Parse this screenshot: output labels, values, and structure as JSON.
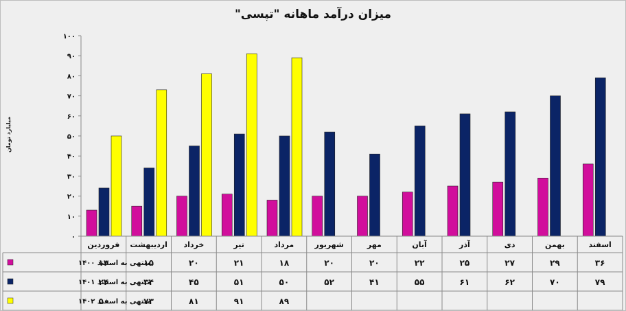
{
  "chart_data": {
    "type": "bar",
    "title": "میزان درآمد ماهانه \"تپسی\"",
    "ylabel": "میلیارد تومان",
    "ylim": [
      0,
      100
    ],
    "yticks": [
      "۰",
      "۱۰",
      "۲۰",
      "۳۰",
      "۴۰",
      "۵۰",
      "۶۰",
      "۷۰",
      "۸۰",
      "۹۰",
      "۱۰۰"
    ],
    "grid": false,
    "legend": "table-left",
    "categories": [
      "فروردین",
      "اردیبهشت",
      "خرداد",
      "تیر",
      "مرداد",
      "شهریور",
      "مهر",
      "آبان",
      "آذر",
      "دی",
      "بهمن",
      "اسفند"
    ],
    "series": [
      {
        "name": "منتهی به اسفند ۱۴۰۰",
        "color": "#d10e9c",
        "values": [
          13,
          15,
          20,
          21,
          18,
          20,
          20,
          22,
          25,
          27,
          29,
          36
        ],
        "labels": [
          "۱۳",
          "۱۵",
          "۲۰",
          "۲۱",
          "۱۸",
          "۲۰",
          "۲۰",
          "۲۲",
          "۲۵",
          "۲۷",
          "۲۹",
          "۳۶"
        ]
      },
      {
        "name": "منتهی به اسفند ۱۴۰۱",
        "color": "#0b2466",
        "values": [
          24,
          34,
          45,
          51,
          50,
          52,
          41,
          55,
          61,
          62,
          70,
          79
        ],
        "labels": [
          "۲۴",
          "۳۴",
          "۴۵",
          "۵۱",
          "۵۰",
          "۵۲",
          "۴۱",
          "۵۵",
          "۶۱",
          "۶۲",
          "۷۰",
          "۷۹"
        ]
      },
      {
        "name": "منتهی به اسفند ۱۴۰۲",
        "color": "#ffff00",
        "values": [
          50,
          73,
          81,
          91,
          89,
          null,
          null,
          null,
          null,
          null,
          null,
          null
        ],
        "labels": [
          "۵۰",
          "۷۳",
          "۸۱",
          "۹۱",
          "۸۹",
          "",
          "",
          "",
          "",
          "",
          "",
          ""
        ]
      }
    ]
  }
}
